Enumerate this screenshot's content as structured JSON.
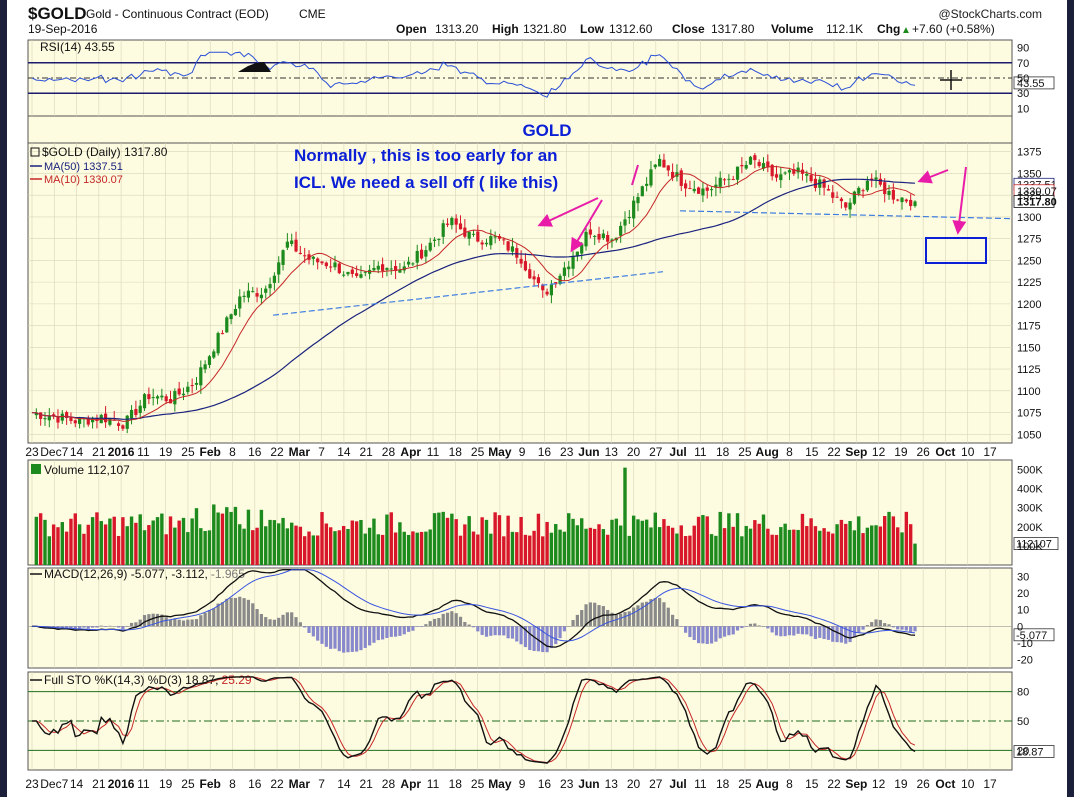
{
  "header": {
    "symbol": "$GOLD",
    "description": "Gold - Continuous Contract (EOD)",
    "exchange": "CME",
    "date": "19-Sep-2016",
    "open_label": "Open",
    "open": "1313.20",
    "high_label": "High",
    "high": "1321.80",
    "low_label": "Low",
    "low": "1312.60",
    "close_label": "Close",
    "close": "1317.80",
    "volume_label": "Volume",
    "volume": "112.1K",
    "chg_label": "Chg",
    "chg": "+7.60 (+0.58%)",
    "chg_arrow": "▲",
    "brand": "@StockCharts.com"
  },
  "colors": {
    "panel_bg": "#fdfbe0",
    "up": "#1c8a1c",
    "down": "#d8182a",
    "ma50": "#1a237e",
    "ma10": "#c62828",
    "annotation_blue": "#0a1fd6",
    "arrow_magenta": "#e81ca8",
    "trendline": "#3d7de0",
    "rsi_line": "#2a4fd6",
    "macd_signal": "#3a55e0",
    "hist": "#8a8a8a",
    "hist_neg": "#8888cc"
  },
  "x_axis": {
    "labels": [
      "23",
      "Dec7",
      "14",
      "21",
      "2016",
      "11",
      "19",
      "25",
      "Feb",
      "8",
      "16",
      "22",
      "Mar",
      "7",
      "14",
      "21",
      "28",
      "Apr",
      "11",
      "18",
      "25",
      "May",
      "9",
      "16",
      "23",
      "Jun",
      "13",
      "20",
      "27",
      "Jul",
      "11",
      "18",
      "25",
      "Aug",
      "8",
      "15",
      "22",
      "Sep",
      "12",
      "19",
      "26",
      "Oct",
      "10",
      "17"
    ],
    "bold": [
      "2016",
      "Feb",
      "Mar",
      "Apr",
      "May",
      "Jun",
      "Jul",
      "Aug",
      "Sep",
      "Oct"
    ]
  },
  "rsi": {
    "legend": "RSI(14) 43.55",
    "value_tag": "43.55",
    "ticks": [
      "90",
      "70",
      "50",
      "30",
      "10"
    ]
  },
  "price": {
    "legend_symbol": "$GOLD (Daily) 1317.80",
    "ma50_legend": "MA(50) 1337.51",
    "ma10_legend": "MA(10) 1330.07",
    "ma50_tag": "1337.51",
    "ma10_tag": "1330.07",
    "close_tag": "1317.80",
    "ticks": [
      "1375",
      "1350",
      "1325",
      "1300",
      "1275",
      "1250",
      "1225",
      "1200",
      "1175",
      "1150",
      "1125",
      "1100",
      "1075",
      "1050"
    ],
    "annotation_title": "GOLD",
    "annotation_line1": "Normally , this is too early for an",
    "annotation_line2": "ICL.  We need a sell off  ( like this)"
  },
  "volume": {
    "legend": "Volume 112,107",
    "value_tag": "112107",
    "ticks": [
      "500K",
      "400K",
      "300K",
      "200K",
      "100K"
    ]
  },
  "macd": {
    "legend": "MACD(12,26,9) -5.077, -3.112, -1.965",
    "legend_main": "MACD(12,26,9) -5.077, -3.112,",
    "legend_hist": "-1.965",
    "value_tag": "-5.077",
    "ticks": [
      "30",
      "20",
      "10",
      "0",
      "-10",
      "-20"
    ]
  },
  "sto": {
    "legend": "Full STO %K(14,3) %D(3) 18.87, 25.29",
    "legend_main": "Full STO %K(14,3) %D(3) 18.87,",
    "legend_d": "25.29",
    "value_tag": "18.87",
    "ticks": [
      "80",
      "50",
      "20"
    ]
  },
  "chart_data": {
    "type": "candlestick",
    "title": "$GOLD Gold - Continuous Contract (EOD) CME",
    "date": "19-Sep-2016",
    "price_ylim": [
      1040,
      1385
    ],
    "price_ohlc_last": {
      "open": 1313.2,
      "high": 1321.8,
      "low": 1312.6,
      "close": 1317.8
    },
    "price_close_path": [
      {
        "x": "Nov 23",
        "y": 1075
      },
      {
        "x": "Dec 7",
        "y": 1070
      },
      {
        "x": "Dec 14",
        "y": 1065
      },
      {
        "x": "Dec 21",
        "y": 1070
      },
      {
        "x": "2016",
        "y": 1062
      },
      {
        "x": "Jan 11",
        "y": 1095
      },
      {
        "x": "Jan 19",
        "y": 1090
      },
      {
        "x": "Jan 25",
        "y": 1110
      },
      {
        "x": "Feb 8",
        "y": 1160
      },
      {
        "x": "Feb 16",
        "y": 1210
      },
      {
        "x": "Feb 22",
        "y": 1215
      },
      {
        "x": "Mar 7",
        "y": 1270
      },
      {
        "x": "Mar 14",
        "y": 1250
      },
      {
        "x": "Mar 21",
        "y": 1245
      },
      {
        "x": "Mar 28",
        "y": 1225
      },
      {
        "x": "Apr 11",
        "y": 1245
      },
      {
        "x": "Apr 18",
        "y": 1240
      },
      {
        "x": "Apr 25",
        "y": 1265
      },
      {
        "x": "May 2",
        "y": 1295
      },
      {
        "x": "May 9",
        "y": 1275
      },
      {
        "x": "May 16",
        "y": 1275
      },
      {
        "x": "May 23",
        "y": 1255
      },
      {
        "x": "May 30",
        "y": 1210
      },
      {
        "x": "Jun 6",
        "y": 1245
      },
      {
        "x": "Jun 13",
        "y": 1285
      },
      {
        "x": "Jun 20",
        "y": 1275
      },
      {
        "x": "Jun 24",
        "y": 1320
      },
      {
        "x": "Jul 5",
        "y": 1365
      },
      {
        "x": "Jul 11",
        "y": 1340
      },
      {
        "x": "Jul 18",
        "y": 1330
      },
      {
        "x": "Jul 25",
        "y": 1345
      },
      {
        "x": "Aug 1",
        "y": 1365
      },
      {
        "x": "Aug 8",
        "y": 1345
      },
      {
        "x": "Aug 15",
        "y": 1350
      },
      {
        "x": "Aug 22",
        "y": 1335
      },
      {
        "x": "Aug 29",
        "y": 1310
      },
      {
        "x": "Sep 6",
        "y": 1345
      },
      {
        "x": "Sep 12",
        "y": 1325
      },
      {
        "x": "Sep 19",
        "y": 1317.8
      }
    ],
    "series": [
      {
        "name": "MA(50)",
        "last": 1337.51
      },
      {
        "name": "MA(10)",
        "last": 1330.07
      },
      {
        "name": "Volume",
        "last": 112107
      },
      {
        "name": "RSI(14)",
        "last": 43.55
      },
      {
        "name": "MACD(12,26,9)",
        "values_last": [
          -5.077,
          -3.112,
          -1.965
        ]
      },
      {
        "name": "Full STO %K(14,3) %D(3)",
        "values_last": [
          18.87,
          25.29
        ]
      }
    ],
    "rsi_ylim": [
      0,
      100
    ],
    "volume_ylim": [
      0,
      550000
    ],
    "macd_ylim": [
      -25,
      35
    ],
    "sto_ylim": [
      0,
      100
    ],
    "annotations": [
      "GOLD",
      "Normally , this is too early for an",
      "ICL.  We need a sell off  ( like this)"
    ]
  }
}
